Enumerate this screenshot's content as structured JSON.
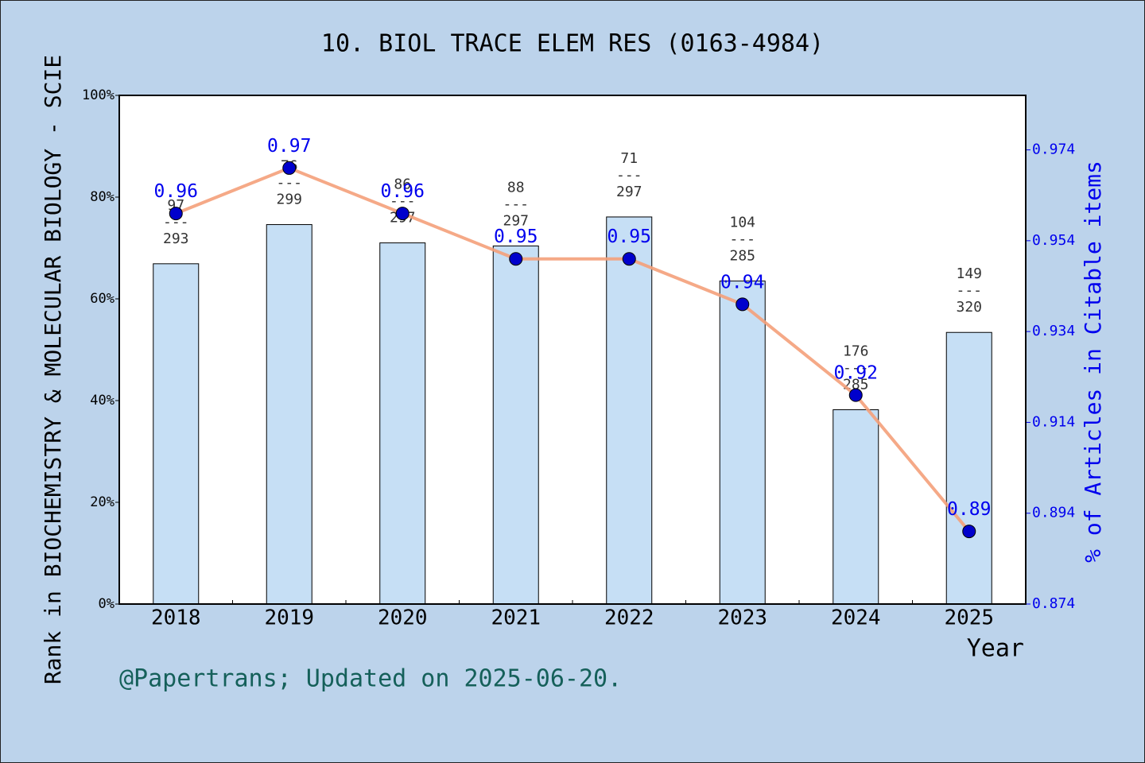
{
  "chart_data": {
    "type": "combo",
    "title": "10. BIOL TRACE ELEM RES (0163-4984)",
    "y_label": "Rank in BIOCHEMISTRY & MOLECULAR BIOLOGY - SCIE",
    "y2_label": "% of Articles in Citable items",
    "x_label": "Year",
    "footnote": "@Papertrans; Updated on 2025-06-20.",
    "categories": [
      "2018",
      "2019",
      "2020",
      "2021",
      "2022",
      "2023",
      "2024",
      "2025"
    ],
    "values": [
      66.9,
      74.6,
      71.0,
      70.4,
      76.1,
      63.5,
      38.2,
      53.4
    ],
    "ranks": [
      97,
      76,
      86,
      88,
      71,
      104,
      176,
      149
    ],
    "separator": "---",
    "totals": [
      293,
      299,
      297,
      297,
      297,
      285,
      285,
      320
    ],
    "line_values": [
      0.96,
      0.97,
      0.96,
      0.95,
      0.95,
      0.94,
      0.92,
      0.89
    ],
    "bar_color": "#c6dff5",
    "line_color": "#f4a07a",
    "marker_color": "#0000cc",
    "y2_color": "#0000ee",
    "ylim": [
      0,
      100
    ],
    "yticks": [
      {
        "value": 0,
        "label": "0%"
      },
      {
        "value": 20,
        "label": "20%"
      },
      {
        "value": 40,
        "label": "40%"
      },
      {
        "value": 60,
        "label": "60%"
      },
      {
        "value": 80,
        "label": "80%"
      },
      {
        "value": 100,
        "label": "100%"
      }
    ],
    "y2lim": [
      0.874,
      0.986
    ],
    "y2ticks": [
      0.874,
      0.894,
      0.914,
      0.934,
      0.954,
      0.974
    ]
  }
}
